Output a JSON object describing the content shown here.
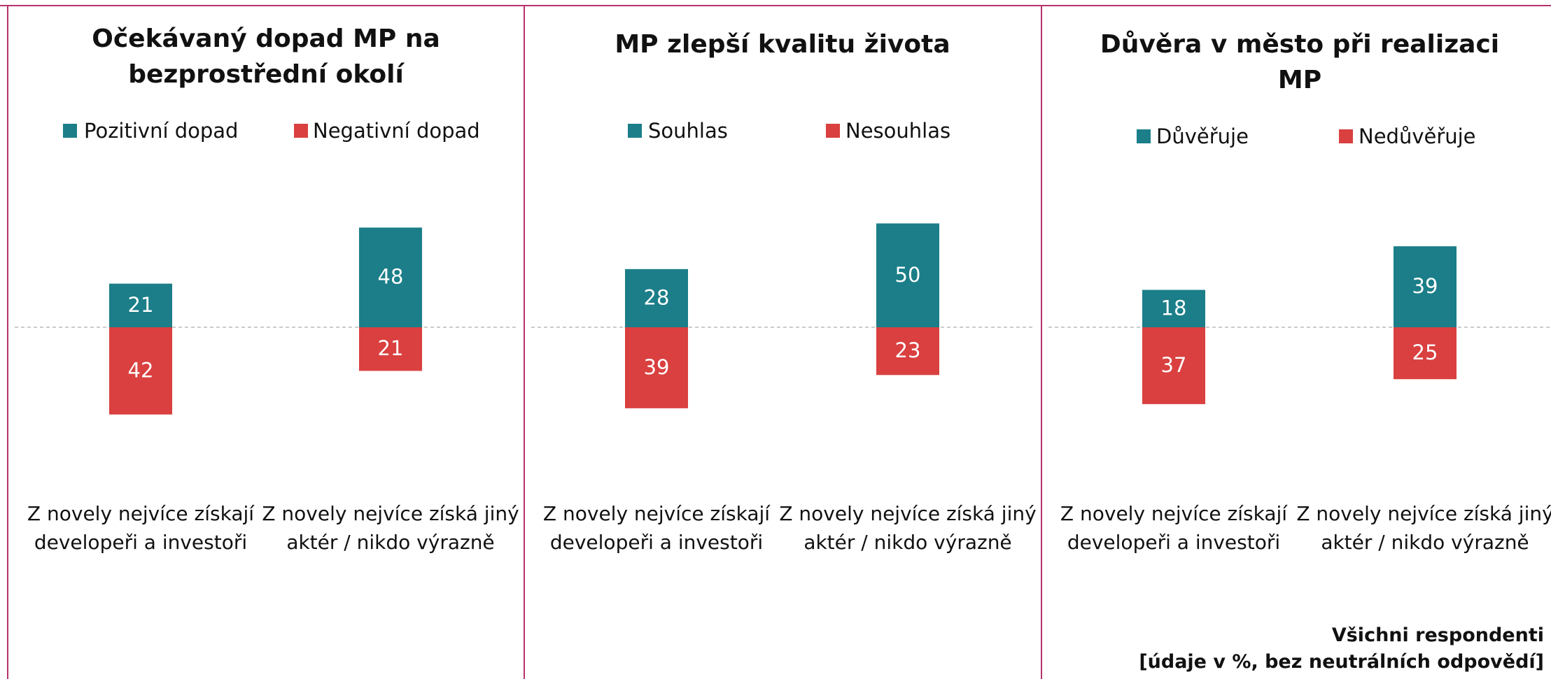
{
  "chart_data": [
    {
      "type": "diverging-bar",
      "title": "Očekávaný dopad MP na bezprostřední okolí",
      "categories": [
        "Z novely nejvíce získají developeři a investoři",
        "Z novely nejvíce získá jiný aktér / nikdo výrazně"
      ],
      "series": [
        {
          "name": "Pozitivní dopad",
          "color": "#1b7e89",
          "values": [
            21,
            48
          ]
        },
        {
          "name": "Negativní dopad",
          "color": "#d9403f",
          "values": [
            42,
            21
          ]
        }
      ]
    },
    {
      "type": "diverging-bar",
      "title": "MP zlepší kvalitu života",
      "categories": [
        "Z novely nejvíce získají developeři a investoři",
        "Z novely nejvíce získá jiný aktér / nikdo výrazně"
      ],
      "series": [
        {
          "name": "Souhlas",
          "color": "#1b7e89",
          "values": [
            28,
            50
          ]
        },
        {
          "name": "Nesouhlas",
          "color": "#d9403f",
          "values": [
            39,
            23
          ]
        }
      ]
    },
    {
      "type": "diverging-bar",
      "title": "Důvěra v město při realizaci MP",
      "categories": [
        "Z novely nejvíce získají developeři a investoři",
        "Z novely nejvíce získá jiný aktér / nikdo výrazně"
      ],
      "series": [
        {
          "name": "Důvěřuje",
          "color": "#1b7e89",
          "values": [
            18,
            39
          ]
        },
        {
          "name": "Nedůvěřuje",
          "color": "#d9403f",
          "values": [
            37,
            25
          ]
        }
      ]
    }
  ],
  "footnote": [
    "Všichni respondenti",
    "[údaje v %, bez neutrálních odpovědí]"
  ]
}
